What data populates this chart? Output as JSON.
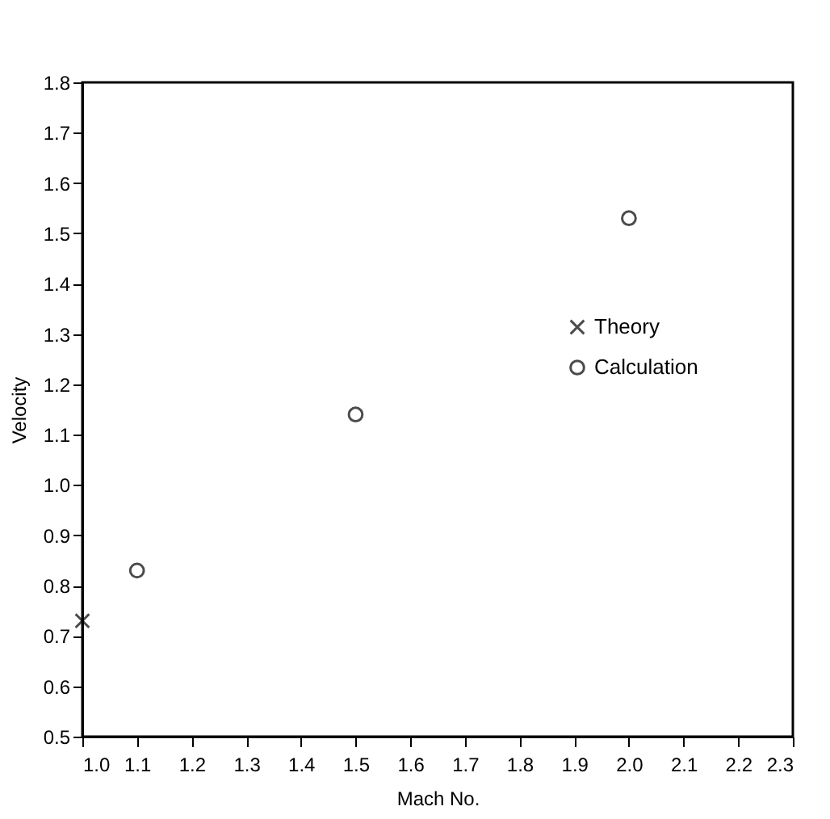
{
  "chart_data": {
    "type": "scatter",
    "xlabel": "Mach No.",
    "ylabel": "Velocity",
    "xlim": [
      1.0,
      2.3
    ],
    "xticks": [
      {
        "value": 1,
        "label": "1.0"
      },
      1.1,
      1.2,
      1.3,
      1.4,
      1.5,
      1.6,
      1.7,
      1.8,
      1.9,
      {
        "value": 2,
        "label": "2.0"
      },
      2.1,
      2.2,
      2.3
    ],
    "ylim": [
      0.5,
      1.8
    ],
    "yticks": [
      0.5,
      0.6,
      0.7,
      0.8,
      0.9,
      {
        "value": 1,
        "label": "1.0"
      },
      1.1,
      1.2,
      1.3,
      1.4,
      1.5,
      1.6,
      1.7,
      1.8
    ],
    "legend": "right",
    "grid": false,
    "series": [
      {
        "name": "Theory",
        "color": "#000000",
        "marker": "cross",
        "x": [
          1.0
        ],
        "values": [
          0.73
        ]
      },
      {
        "name": "Calculation",
        "color": "#000000",
        "marker": "circle",
        "x": [
          1.1,
          1.5,
          2.0
        ],
        "values": [
          0.83,
          1.14,
          1.53
        ]
      }
    ]
  }
}
